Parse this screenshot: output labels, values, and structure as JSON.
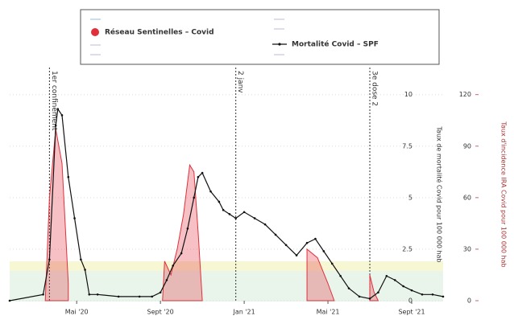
{
  "chart_data": {
    "type": "line",
    "legend_labels": [
      "Réseau Sentinelles – Covid",
      "Mortalité Covid – SPF"
    ],
    "y_label": "Taux de mortalité Covid pour 100 000 hab",
    "y2_label": "Taux d'incidence IRA Covid pour 100 000 hab",
    "xlim": [
      0.8,
      21.5
    ],
    "xticks": [
      {
        "value": 4,
        "label": "Mai '20"
      },
      {
        "value": 8,
        "label": "Sept '20"
      },
      {
        "value": 12,
        "label": "Jan '21"
      },
      {
        "value": 16,
        "label": "Mai '21"
      },
      {
        "value": 20,
        "label": "Sept '21"
      }
    ],
    "ylim": [
      0,
      10.3
    ],
    "yticks": [
      0,
      2.5,
      5,
      7.5,
      10
    ],
    "y2lim": [
      0,
      123.6
    ],
    "y2ticks": [
      0,
      30,
      60,
      90,
      120
    ],
    "grid": true,
    "annotations": [
      {
        "x": 2.7,
        "label": "1er confinement"
      },
      {
        "x": 11.6,
        "label": "2 janv"
      },
      {
        "x": 18.0,
        "label": "3e dose 2"
      }
    ],
    "series": [
      {
        "name": "Réseau Sentinelles – Covid",
        "color": "#e0303c",
        "axis": "y2",
        "kind": "area",
        "x": [
          2.5,
          2.7,
          3.0,
          3.3,
          3.6,
          3.7,
          8.1,
          8.2,
          8.5,
          8.8,
          9.1,
          9.4,
          9.6,
          9.8,
          10.0,
          14.9,
          15.0,
          15.5,
          16.0,
          16.3,
          17.9,
          18.0,
          18.2,
          18.4
        ],
        "values": [
          0,
          60,
          100,
          80,
          10,
          null,
          0,
          23,
          15,
          30,
          50,
          79,
          75,
          40,
          0,
          null,
          30,
          25,
          10,
          0,
          null,
          15,
          5,
          0
        ]
      },
      {
        "name": "Mortalité Covid – SPF",
        "color": "#111111",
        "axis": "y",
        "kind": "line",
        "x": [
          0.8,
          2.4,
          2.7,
          3.0,
          3.1,
          3.3,
          3.6,
          3.9,
          4.2,
          4.4,
          4.6,
          5,
          6,
          7,
          7.6,
          8,
          8.3,
          8.6,
          9,
          9.3,
          9.6,
          9.8,
          10,
          10.4,
          10.8,
          11,
          11.3,
          11.6,
          12,
          12.5,
          13,
          13.5,
          14,
          14.5,
          15,
          15.4,
          15.8,
          16.2,
          16.6,
          17,
          17.5,
          18,
          18.4,
          18.8,
          19.2,
          19.6,
          20,
          20.5,
          21,
          21.5
        ],
        "values": [
          0,
          0.3,
          2,
          8.5,
          9.3,
          9,
          6,
          4,
          2,
          1.5,
          0.3,
          0.3,
          0.2,
          0.2,
          0.2,
          0.4,
          1,
          1.7,
          2.3,
          3.5,
          5,
          6,
          6.2,
          5.3,
          4.8,
          4.4,
          4.2,
          4,
          4.3,
          4,
          3.7,
          3.2,
          2.7,
          2.2,
          2.8,
          3.0,
          2.4,
          1.8,
          1.2,
          0.6,
          0.2,
          0.1,
          0.4,
          1.2,
          1,
          0.7,
          0.5,
          0.3,
          0.3,
          0.2
        ]
      }
    ]
  }
}
